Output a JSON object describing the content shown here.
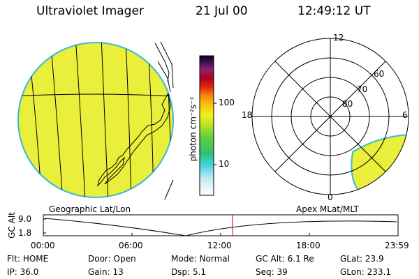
{
  "header": {
    "title": "Ultraviolet Imager",
    "date": "21 Jul 00",
    "time": "12:49:12 UT"
  },
  "panels": {
    "left_label": "Geographic Lat/Lon",
    "right_label": "Apex MLat/MLT"
  },
  "colorbar": {
    "unit_label": "photon cm⁻²s⁻¹",
    "ticks": [
      "100",
      "10"
    ]
  },
  "polar": {
    "mlt_labels": [
      "12",
      "18",
      "6",
      "0"
    ],
    "lat_labels": [
      "60",
      "70",
      "80"
    ]
  },
  "timeline": {
    "axis_label": "GC Alt",
    "y_ticks": [
      "9.0",
      "1.8"
    ],
    "x_ticks": [
      "00:00",
      "06:00",
      "12:00",
      "18:00",
      "23:59"
    ],
    "marker_time": "12:49"
  },
  "info": {
    "row1": [
      {
        "label": "Flt:",
        "value": "HOME"
      },
      {
        "label": "Door:",
        "value": "Open"
      },
      {
        "label": "Mode:",
        "value": "Normal"
      },
      {
        "label": "GC Alt:",
        "value": "6.1 Re"
      },
      {
        "label": "GLat:",
        "value": "23.9"
      }
    ],
    "row2": [
      {
        "label": "IP:",
        "value": "36.0"
      },
      {
        "label": "Gain:",
        "value": "13"
      },
      {
        "label": "Dsp:",
        "value": "5.1"
      },
      {
        "label": "Seq:",
        "value": "39"
      },
      {
        "label": "GLon:",
        "value": "233.1"
      }
    ]
  },
  "colors": {
    "disk": "#e9ef3a",
    "disk_edge": "#3ab8d8",
    "marker": "#cc0000"
  }
}
